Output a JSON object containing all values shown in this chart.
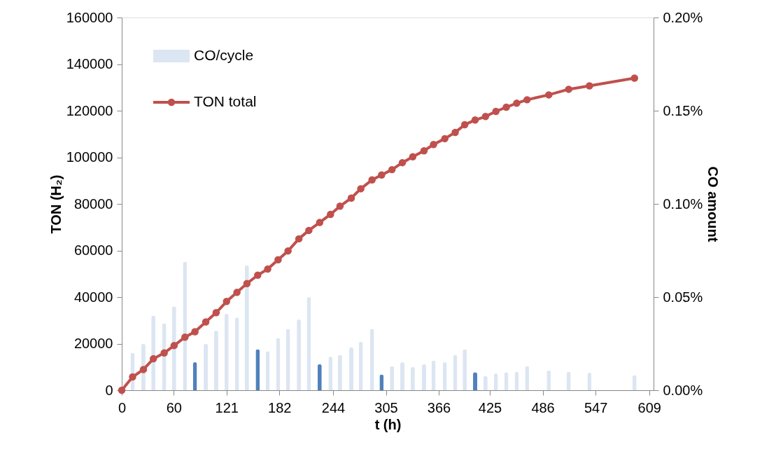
{
  "chart_data": {
    "type": "bar",
    "xlabel": "t (h)",
    "ylabel": "TON (H₂)",
    "y2label": "CO amount",
    "legend": "top left",
    "grid": false,
    "xlim": [
      0,
      614
    ],
    "xticks": [
      0,
      60,
      121,
      182,
      244,
      305,
      366,
      425,
      486,
      547,
      609
    ],
    "ylim": [
      0,
      160000
    ],
    "yticks": [
      0,
      20000,
      40000,
      60000,
      80000,
      100000,
      120000,
      140000,
      160000
    ],
    "y2lim": [
      0,
      0.2
    ],
    "y2ticks": [
      {
        "value": 0,
        "label": "0.00%"
      },
      {
        "value": 0.05,
        "label": "0.05%"
      },
      {
        "value": 0.1,
        "label": "0.10%"
      },
      {
        "value": 0.15,
        "label": "0.15%"
      },
      {
        "value": 0.2,
        "label": "0.20%"
      }
    ],
    "series": [
      {
        "name": "CO/cycle",
        "axis": "y2",
        "color": "#dce6f2",
        "x": [
          12.5,
          25,
          36.5,
          49,
          60.5,
          73,
          84.5,
          97,
          109,
          121,
          133,
          144.5,
          157,
          168.5,
          180.5,
          192,
          204.5,
          216,
          228.5,
          241,
          252,
          265,
          276,
          289,
          300,
          312,
          324,
          336,
          349,
          360,
          373,
          385,
          396,
          408,
          420,
          432,
          444,
          456,
          468,
          493,
          516,
          540,
          592
        ],
        "values": [
          0.02,
          0.025,
          0.04,
          0.036,
          0.045,
          0.069,
          0.015,
          0.025,
          0.032,
          0.041,
          0.039,
          0.067,
          0.022,
          0.021,
          0.028,
          0.033,
          0.038,
          0.05,
          0.014,
          0.018,
          0.019,
          0.023,
          0.026,
          0.033,
          0.0085,
          0.013,
          0.015,
          0.0125,
          0.014,
          0.016,
          0.015,
          0.019,
          0.022,
          0.0097,
          0.0076,
          0.009,
          0.0097,
          0.01,
          0.013,
          0.0106,
          0.01,
          0.0095,
          0.0081
        ],
        "colors": [
          "#dce6f2",
          "#dce6f2",
          "#dce6f2",
          "#dce6f2",
          "#dce6f2",
          "#dce6f2",
          "#4f81bd",
          "#dce6f2",
          "#dce6f2",
          "#dce6f2",
          "#dce6f2",
          "#dce6f2",
          "#4f81bd",
          "#dce6f2",
          "#dce6f2",
          "#dce6f2",
          "#dce6f2",
          "#dce6f2",
          "#4f81bd",
          "#dce6f2",
          "#dce6f2",
          "#dce6f2",
          "#dce6f2",
          "#dce6f2",
          "#4f81bd",
          "#dce6f2",
          "#dce6f2",
          "#dce6f2",
          "#dce6f2",
          "#dce6f2",
          "#dce6f2",
          "#dce6f2",
          "#dce6f2",
          "#4f81bd",
          "#dce6f2",
          "#dce6f2",
          "#dce6f2",
          "#dce6f2",
          "#dce6f2",
          "#dce6f2",
          "#dce6f2",
          "#dce6f2",
          "#dce6f2"
        ]
      },
      {
        "name": "TON total",
        "type": "line",
        "color": "#c0504d",
        "marker": "circle",
        "line_style": "solid",
        "x": [
          0,
          12.5,
          25,
          36.5,
          49,
          60.5,
          73,
          84.5,
          97,
          109,
          121,
          133,
          144.5,
          157,
          168.5,
          180.5,
          192,
          204.5,
          216,
          228.5,
          241,
          252,
          265,
          276,
          289,
          300,
          312,
          324,
          336,
          349,
          360,
          373,
          385,
          396,
          408,
          420,
          432,
          444,
          456,
          468,
          493,
          516,
          540,
          592
        ],
        "values": [
          0,
          5700,
          8900,
          13500,
          16000,
          19200,
          22800,
          25100,
          29300,
          33300,
          38100,
          42000,
          45800,
          49400,
          52000,
          56000,
          59800,
          65000,
          68600,
          72000,
          75500,
          79000,
          82500,
          86500,
          90300,
          92400,
          94700,
          97700,
          100200,
          102800,
          105500,
          108000,
          110700,
          114000,
          116000,
          117500,
          119700,
          121500,
          123200,
          124700,
          126800,
          129200,
          130700,
          134000
        ]
      }
    ]
  }
}
